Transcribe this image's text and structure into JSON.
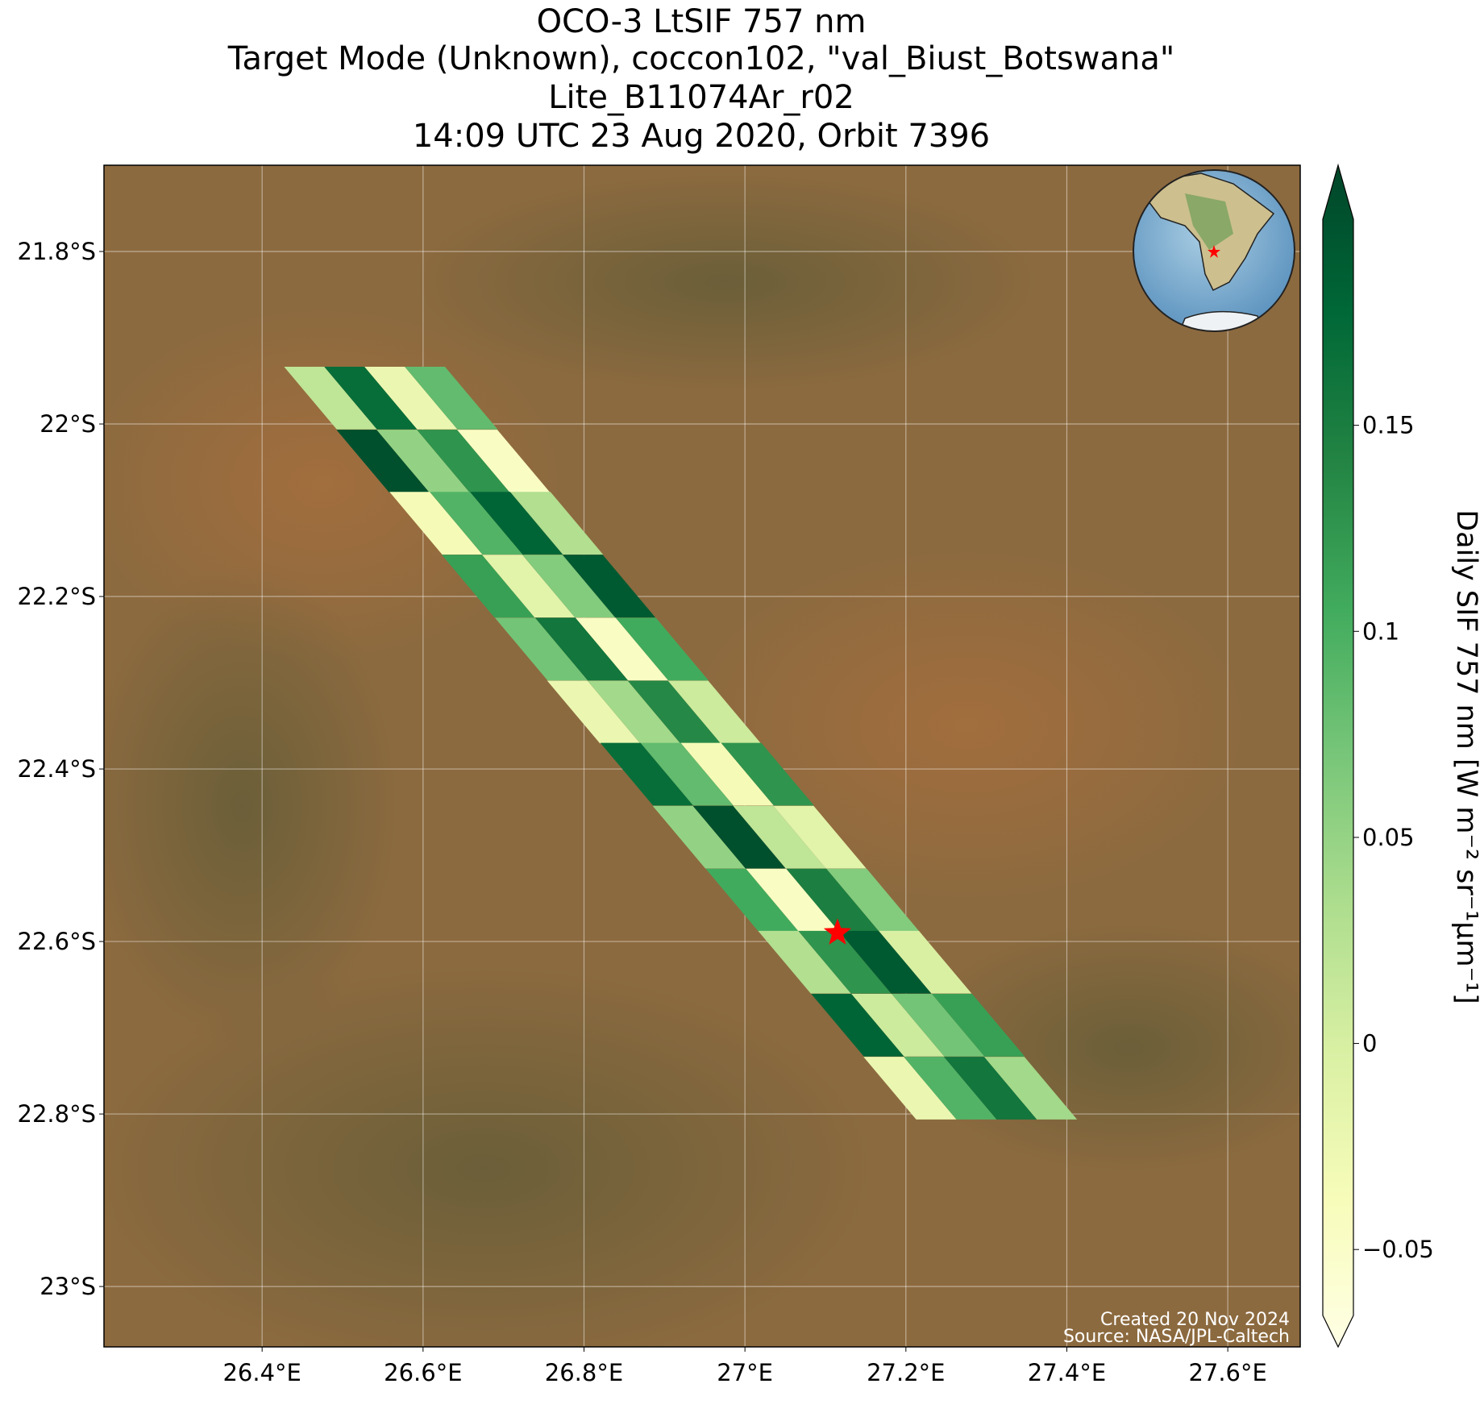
{
  "chart_data": {
    "type": "map",
    "title": [
      "OCO-3 LtSIF 757 nm",
      "Target Mode (Unknown), coccon102, \"val_Biust_Botswana\"",
      "Lite_B11074Ar_r02",
      "14:09 UTC 23 Aug 2020, Orbit 7396"
    ],
    "xlim": [
      26.2035,
      27.69
    ],
    "ylim": [
      -23.07,
      -21.7
    ],
    "xticks": [
      {
        "value": 26.4,
        "label": "26.4°E"
      },
      {
        "value": 26.6,
        "label": "26.6°E"
      },
      {
        "value": 26.8,
        "label": "26.8°E"
      },
      {
        "value": 27.0,
        "label": "27°E"
      },
      {
        "value": 27.2,
        "label": "27.2°E"
      },
      {
        "value": 27.4,
        "label": "27.4°E"
      },
      {
        "value": 27.6,
        "label": "27.6°E"
      }
    ],
    "yticks": [
      {
        "value": -21.8,
        "label": "21.8°S"
      },
      {
        "value": -22.0,
        "label": "22°S"
      },
      {
        "value": -22.2,
        "label": "22.2°S"
      },
      {
        "value": -22.4,
        "label": "22.4°S"
      },
      {
        "value": -22.6,
        "label": "22.6°S"
      },
      {
        "value": -22.8,
        "label": "22.8°S"
      },
      {
        "value": -23.0,
        "label": "23°S"
      }
    ],
    "grid": true,
    "colormap": "YlGn",
    "clim": [
      -0.066,
      0.2
    ],
    "cticks": [
      {
        "value": -0.05,
        "label": "−0.05"
      },
      0.0,
      0.05,
      0.1,
      0.15
    ],
    "colorbar_label": "Daily SIF 757 nm [W m⁻² sr⁻¹μm⁻¹]",
    "footprints": {
      "lon": [
        26.485,
        26.535,
        26.585,
        26.635,
        26.55,
        26.6,
        26.65,
        26.7,
        26.616,
        26.666,
        26.716,
        26.766,
        26.681,
        26.731,
        26.781,
        26.831,
        26.747,
        26.797,
        26.847,
        26.897,
        26.812,
        26.862,
        26.912,
        26.962,
        26.878,
        26.928,
        26.978,
        27.028,
        26.943,
        26.993,
        27.043,
        27.093,
        27.009,
        27.059,
        27.109,
        27.159,
        27.074,
        27.124,
        27.174,
        27.224,
        27.14,
        27.19,
        27.24,
        27.29,
        27.205,
        27.255,
        27.305,
        27.355
      ],
      "lat": [
        -21.97,
        -21.97,
        -21.97,
        -21.97,
        -22.043,
        -22.043,
        -22.043,
        -22.043,
        -22.115,
        -22.115,
        -22.115,
        -22.115,
        -22.188,
        -22.188,
        -22.188,
        -22.188,
        -22.261,
        -22.261,
        -22.261,
        -22.261,
        -22.334,
        -22.334,
        -22.334,
        -22.334,
        -22.406,
        -22.406,
        -22.406,
        -22.406,
        -22.479,
        -22.479,
        -22.479,
        -22.479,
        -22.552,
        -22.552,
        -22.552,
        -22.552,
        -22.624,
        -22.624,
        -22.624,
        -22.624,
        -22.697,
        -22.697,
        -22.697,
        -22.697,
        -22.77,
        -22.77,
        -22.77,
        -22.77
      ],
      "sif": [
        0.02,
        0.16,
        -0.02,
        0.08,
        0.19,
        0.05,
        0.12,
        -0.04,
        -0.03,
        0.09,
        0.17,
        0.03,
        0.11,
        -0.01,
        0.06,
        0.18,
        0.07,
        0.15,
        -0.04,
        0.1,
        -0.02,
        0.04,
        0.13,
        0.01,
        0.16,
        0.08,
        -0.03,
        0.12,
        0.05,
        0.19,
        0.02,
        -0.01,
        0.1,
        -0.04,
        0.14,
        0.06,
        0.03,
        0.12,
        0.18,
        0.0,
        0.17,
        0.01,
        0.07,
        0.11,
        -0.02,
        0.09,
        0.15,
        0.04
      ]
    },
    "target": {
      "lon": 27.115,
      "lat": -22.59
    },
    "credits": [
      "Created 20 Nov 2024",
      "Source: NASA/JPL-Caltech"
    ]
  }
}
